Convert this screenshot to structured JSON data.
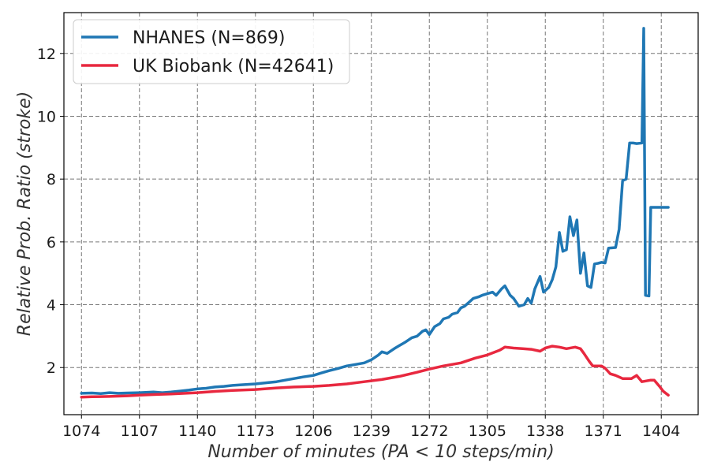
{
  "chart_data": {
    "type": "line",
    "title": "",
    "xlabel": "Number of minutes (PA < 10 steps/min)",
    "ylabel": "Relative Prob. Ratio (stroke)",
    "xlim": [
      1064,
      1425
    ],
    "ylim": [
      0.5,
      13.3
    ],
    "x_ticks": [
      1074,
      1107,
      1140,
      1173,
      1206,
      1239,
      1272,
      1305,
      1338,
      1371,
      1404
    ],
    "y_ticks": [
      2,
      4,
      6,
      8,
      10,
      12
    ],
    "grid": true,
    "legend_position": "top-left",
    "series": [
      {
        "name": "NHANES (N=869)",
        "color": "#1f77b4",
        "points": [
          [
            1074,
            1.18
          ],
          [
            1080,
            1.19
          ],
          [
            1085,
            1.17
          ],
          [
            1090,
            1.2
          ],
          [
            1095,
            1.18
          ],
          [
            1100,
            1.19
          ],
          [
            1107,
            1.2
          ],
          [
            1115,
            1.22
          ],
          [
            1120,
            1.2
          ],
          [
            1125,
            1.22
          ],
          [
            1130,
            1.25
          ],
          [
            1135,
            1.28
          ],
          [
            1140,
            1.32
          ],
          [
            1145,
            1.34
          ],
          [
            1150,
            1.38
          ],
          [
            1155,
            1.4
          ],
          [
            1160,
            1.43
          ],
          [
            1165,
            1.45
          ],
          [
            1173,
            1.48
          ],
          [
            1180,
            1.52
          ],
          [
            1185,
            1.55
          ],
          [
            1190,
            1.6
          ],
          [
            1195,
            1.65
          ],
          [
            1200,
            1.7
          ],
          [
            1206,
            1.75
          ],
          [
            1210,
            1.82
          ],
          [
            1215,
            1.9
          ],
          [
            1220,
            1.97
          ],
          [
            1225,
            2.05
          ],
          [
            1230,
            2.1
          ],
          [
            1235,
            2.15
          ],
          [
            1239,
            2.25
          ],
          [
            1243,
            2.4
          ],
          [
            1245,
            2.5
          ],
          [
            1248,
            2.45
          ],
          [
            1252,
            2.6
          ],
          [
            1255,
            2.7
          ],
          [
            1258,
            2.8
          ],
          [
            1262,
            2.95
          ],
          [
            1265,
            3.0
          ],
          [
            1268,
            3.15
          ],
          [
            1270,
            3.2
          ],
          [
            1272,
            3.05
          ],
          [
            1275,
            3.3
          ],
          [
            1278,
            3.4
          ],
          [
            1280,
            3.55
          ],
          [
            1283,
            3.6
          ],
          [
            1285,
            3.7
          ],
          [
            1288,
            3.75
          ],
          [
            1290,
            3.9
          ],
          [
            1292,
            3.95
          ],
          [
            1295,
            4.1
          ],
          [
            1297,
            4.2
          ],
          [
            1300,
            4.25
          ],
          [
            1302,
            4.3
          ],
          [
            1305,
            4.35
          ],
          [
            1308,
            4.4
          ],
          [
            1310,
            4.3
          ],
          [
            1313,
            4.5
          ],
          [
            1315,
            4.6
          ],
          [
            1318,
            4.3
          ],
          [
            1320,
            4.2
          ],
          [
            1323,
            3.95
          ],
          [
            1326,
            4.0
          ],
          [
            1328,
            4.2
          ],
          [
            1330,
            4.05
          ],
          [
            1332,
            4.5
          ],
          [
            1335,
            4.9
          ],
          [
            1337,
            4.4
          ],
          [
            1340,
            4.55
          ],
          [
            1342,
            4.8
          ],
          [
            1344,
            5.2
          ],
          [
            1346,
            6.3
          ],
          [
            1348,
            5.7
          ],
          [
            1350,
            5.75
          ],
          [
            1352,
            6.8
          ],
          [
            1354,
            6.2
          ],
          [
            1356,
            6.7
          ],
          [
            1358,
            5.0
          ],
          [
            1360,
            5.65
          ],
          [
            1362,
            4.6
          ],
          [
            1364,
            4.55
          ],
          [
            1366,
            5.3
          ],
          [
            1368,
            5.32
          ],
          [
            1370,
            5.35
          ],
          [
            1372,
            5.33
          ],
          [
            1374,
            5.8
          ],
          [
            1378,
            5.82
          ],
          [
            1380,
            6.4
          ],
          [
            1382,
            7.95
          ],
          [
            1384,
            8.0
          ],
          [
            1386,
            9.15
          ],
          [
            1388,
            9.15
          ],
          [
            1390,
            9.13
          ],
          [
            1393,
            9.15
          ],
          [
            1394,
            12.8
          ],
          [
            1395,
            4.3
          ],
          [
            1397,
            4.28
          ],
          [
            1398,
            7.1
          ],
          [
            1404,
            7.1
          ],
          [
            1408,
            7.1
          ]
        ]
      },
      {
        "name": "UK Biobank (N=42641)",
        "color": "#e8283f",
        "points": [
          [
            1074,
            1.06
          ],
          [
            1080,
            1.07
          ],
          [
            1090,
            1.08
          ],
          [
            1100,
            1.1
          ],
          [
            1107,
            1.12
          ],
          [
            1115,
            1.14
          ],
          [
            1125,
            1.16
          ],
          [
            1140,
            1.2
          ],
          [
            1150,
            1.24
          ],
          [
            1160,
            1.27
          ],
          [
            1173,
            1.3
          ],
          [
            1185,
            1.35
          ],
          [
            1195,
            1.38
          ],
          [
            1206,
            1.4
          ],
          [
            1215,
            1.43
          ],
          [
            1225,
            1.48
          ],
          [
            1235,
            1.55
          ],
          [
            1245,
            1.62
          ],
          [
            1255,
            1.72
          ],
          [
            1265,
            1.85
          ],
          [
            1272,
            1.95
          ],
          [
            1280,
            2.05
          ],
          [
            1290,
            2.15
          ],
          [
            1298,
            2.3
          ],
          [
            1305,
            2.4
          ],
          [
            1312,
            2.55
          ],
          [
            1315,
            2.65
          ],
          [
            1320,
            2.62
          ],
          [
            1325,
            2.6
          ],
          [
            1330,
            2.58
          ],
          [
            1335,
            2.52
          ],
          [
            1338,
            2.62
          ],
          [
            1342,
            2.68
          ],
          [
            1346,
            2.65
          ],
          [
            1350,
            2.6
          ],
          [
            1355,
            2.65
          ],
          [
            1358,
            2.6
          ],
          [
            1360,
            2.45
          ],
          [
            1363,
            2.2
          ],
          [
            1365,
            2.05
          ],
          [
            1370,
            2.05
          ],
          [
            1372,
            1.98
          ],
          [
            1375,
            1.8
          ],
          [
            1378,
            1.75
          ],
          [
            1382,
            1.65
          ],
          [
            1387,
            1.65
          ],
          [
            1390,
            1.75
          ],
          [
            1393,
            1.55
          ],
          [
            1398,
            1.6
          ],
          [
            1400,
            1.6
          ],
          [
            1403,
            1.4
          ],
          [
            1405,
            1.25
          ],
          [
            1408,
            1.12
          ]
        ]
      }
    ]
  }
}
